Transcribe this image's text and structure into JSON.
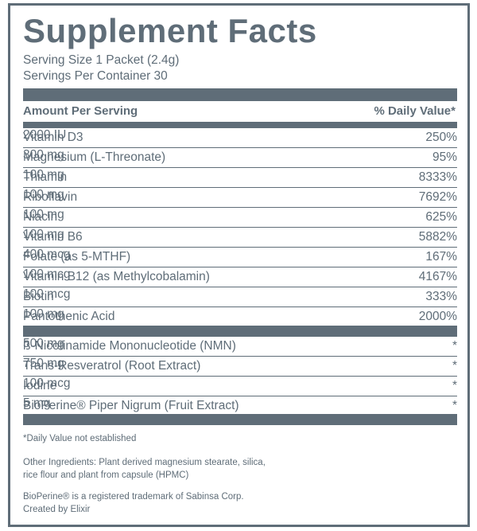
{
  "title": "Supplement Facts",
  "serving_size": "Serving Size 1 Packet (2.4g)",
  "servings_per_container": "Servings Per Container 30",
  "header": {
    "amount_per_serving": "Amount Per Serving",
    "daily_value": "% Daily Value*"
  },
  "section1": [
    {
      "name": "Vitamin D3",
      "amount": "2000 IU",
      "dv": "250%"
    },
    {
      "name": "Magnesium (L-Threonate)",
      "amount": "300 mg",
      "dv": "95%"
    },
    {
      "name": "Thiamin",
      "amount": "100 mg",
      "dv": "8333%"
    },
    {
      "name": "Riboflavin",
      "amount": "100 mg",
      "dv": "7692%"
    },
    {
      "name": "Niacin",
      "amount": "100 mg",
      "dv": "625%"
    },
    {
      "name": "Vitamin B6",
      "amount": "100 mg",
      "dv": "5882%"
    },
    {
      "name": "Folate (as 5-MTHF)",
      "amount": "400 mcg",
      "dv": "167%"
    },
    {
      "name": "Vitamin B12 (as Methylcobalamin)",
      "amount": "100 mcg",
      "dv": "4167%"
    },
    {
      "name": "Biotin",
      "amount": "100 mcg",
      "dv": "333%"
    },
    {
      "name": "Pantothenic Acid",
      "amount": "100 mg",
      "dv": "2000%"
    }
  ],
  "section2": [
    {
      "name": "ß-Nicotinamide Mononucleotide (NMN)",
      "amount": "500 mg",
      "dv": "*"
    },
    {
      "name": "Trans-Resveratrol (Root Extract)",
      "amount": "750 mg",
      "dv": "*"
    },
    {
      "name": "Iodine",
      "amount": "100 mcg",
      "dv": "*"
    },
    {
      "name": "BioPerine® Piper Nigrum (Fruit Extract)",
      "amount": "5 mg",
      "dv": "*"
    }
  ],
  "footnote": "*Daily Value not established",
  "other_ingredients_line1": "Other Ingredients: Plant derived magnesium stearate, silica,",
  "other_ingredients_line2": "rice flour and plant from capsule (HPMC)",
  "trademark": "BioPerine® is a registered trademark of Sabinsa Corp.",
  "created_by": "Created by Elixir",
  "colors": {
    "text": "#5f6d78",
    "bar": "#5f6d78",
    "background": "#ffffff"
  }
}
